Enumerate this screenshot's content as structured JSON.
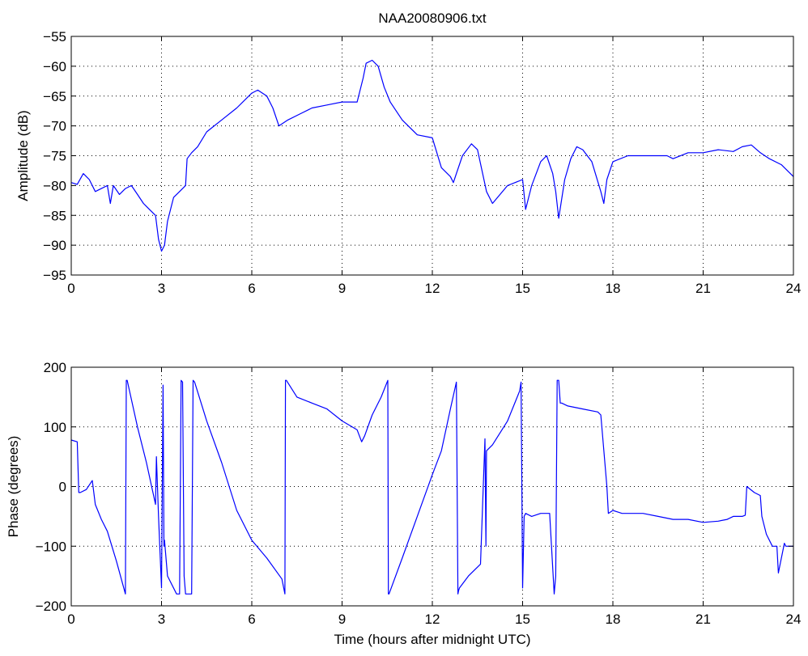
{
  "figure": {
    "title": "NAA20080906.txt",
    "line_color": "#0000ff"
  },
  "chart_data": [
    {
      "type": "line",
      "title": "NAA20080906.txt",
      "xlabel": "",
      "ylabel": "Amplitude (dB)",
      "xlim": [
        0,
        24
      ],
      "ylim": [
        -95,
        -55
      ],
      "xticks": [
        0,
        3,
        6,
        9,
        12,
        15,
        18,
        21,
        24
      ],
      "yticks": [
        -95,
        -90,
        -85,
        -80,
        -75,
        -70,
        -65,
        -60,
        -55
      ],
      "grid": true,
      "series": [
        {
          "x": [
            0,
            0.2,
            0.4,
            0.6,
            0.8,
            1.0,
            1.2,
            1.3,
            1.4,
            1.6,
            1.8,
            2.0,
            2.2,
            2.4,
            2.6,
            2.8,
            2.9,
            3.0,
            3.1,
            3.2,
            3.4,
            3.6,
            3.8,
            3.85,
            4.0,
            4.2,
            4.5,
            5.0,
            5.5,
            6.0,
            6.2,
            6.5,
            6.7,
            6.9,
            7.2,
            7.6,
            8.0,
            8.5,
            9.0,
            9.5,
            9.7,
            9.8,
            10.0,
            10.2,
            10.4,
            10.6,
            11.0,
            11.5,
            12.0,
            12.3,
            12.6,
            12.7,
            12.8,
            13.0,
            13.3,
            13.5,
            13.8,
            14.0,
            14.5,
            15.0,
            15.1,
            15.3,
            15.6,
            15.8,
            16.0,
            16.1,
            16.2,
            16.4,
            16.6,
            16.8,
            17.0,
            17.3,
            17.6,
            17.7,
            17.8,
            18.0,
            18.5,
            19.0,
            19.5,
            19.8,
            20.0,
            20.5,
            21.0,
            21.5,
            22.0,
            22.3,
            22.6,
            22.9,
            23.2,
            23.6,
            24.0
          ],
          "y": [
            -79.5,
            -79.8,
            -78,
            -79,
            -81,
            -80.5,
            -80,
            -83,
            -80,
            -81.5,
            -80.5,
            -80,
            -81.5,
            -83,
            -84,
            -85,
            -89,
            -91,
            -90,
            -86,
            -82,
            -81,
            -80,
            -75.5,
            -74.5,
            -73.5,
            -71,
            -69,
            -67,
            -64.5,
            -64,
            -65,
            -67,
            -70,
            -69,
            -68,
            -67,
            -66.5,
            -66,
            -66,
            -62,
            -59.5,
            -59,
            -60,
            -63.5,
            -66,
            -69,
            -71.5,
            -72,
            -77,
            -78.5,
            -79.5,
            -78,
            -75,
            -73,
            -74,
            -81,
            -83,
            -80,
            -79,
            -84,
            -80,
            -76,
            -75,
            -78,
            -81,
            -85.5,
            -79,
            -75.5,
            -73.5,
            -74,
            -76,
            -81,
            -83,
            -79,
            -76,
            -75,
            -75,
            -75,
            -75,
            -75.5,
            -74.5,
            -74.5,
            -74,
            -74.3,
            -73.5,
            -73.2,
            -74.5,
            -75.5,
            -76.5,
            -78.5
          ]
        }
      ]
    },
    {
      "type": "line",
      "title": "",
      "xlabel": "Time (hours after midnight UTC)",
      "ylabel": "Phase (degrees)",
      "xlim": [
        0,
        24
      ],
      "ylim": [
        -200,
        200
      ],
      "xticks": [
        0,
        3,
        6,
        9,
        12,
        15,
        18,
        21,
        24
      ],
      "yticks": [
        -200,
        -100,
        0,
        100,
        200
      ],
      "grid": true,
      "series": [
        {
          "x": [
            0,
            0.2,
            0.25,
            0.3,
            0.5,
            0.7,
            0.8,
            1.0,
            1.2,
            1.5,
            1.8,
            1.83,
            1.86,
            2.2,
            2.5,
            2.8,
            2.83,
            2.9,
            3.0,
            3.05,
            3.08,
            3.1,
            3.2,
            3.5,
            3.6,
            3.65,
            3.7,
            3.75,
            3.8,
            4.0,
            4.05,
            4.1,
            4.5,
            5.0,
            5.5,
            6.0,
            6.5,
            7.0,
            7.1,
            7.12,
            7.15,
            7.5,
            8.0,
            8.5,
            9.0,
            9.5,
            9.65,
            9.75,
            10.0,
            10.3,
            10.52,
            10.54,
            10.56,
            11.0,
            11.5,
            12.0,
            12.3,
            12.6,
            12.8,
            12.85,
            12.87,
            12.9,
            13.2,
            13.6,
            13.75,
            13.78,
            13.8,
            14.0,
            14.5,
            14.9,
            14.95,
            15.0,
            15.05,
            15.1,
            15.3,
            15.6,
            15.9,
            16.05,
            16.1,
            16.15,
            16.2,
            16.25,
            16.3,
            16.5,
            17.0,
            17.5,
            17.6,
            17.8,
            17.85,
            18.0,
            18.3,
            19.0,
            19.5,
            20.0,
            20.5,
            21.0,
            21.5,
            21.8,
            22.0,
            22.3,
            22.4,
            22.45,
            22.7,
            22.9,
            22.95,
            23.1,
            23.3,
            23.45,
            23.5,
            23.7,
            23.75,
            24.0
          ],
          "y": [
            78,
            75,
            -10,
            -10,
            -5,
            10,
            -30,
            -55,
            -75,
            -125,
            -180,
            178,
            178,
            100,
            40,
            -30,
            50,
            -50,
            -170,
            170,
            -100,
            -90,
            -150,
            -180,
            -180,
            178,
            175,
            -150,
            -180,
            -180,
            178,
            175,
            110,
            40,
            -40,
            -90,
            -120,
            -155,
            -180,
            178,
            178,
            150,
            140,
            130,
            110,
            95,
            75,
            85,
            120,
            150,
            178,
            -180,
            -180,
            -120,
            -50,
            20,
            60,
            130,
            175,
            -180,
            -175,
            -170,
            -150,
            -130,
            80,
            -100,
            60,
            70,
            110,
            160,
            175,
            -170,
            -50,
            -45,
            -50,
            -45,
            -45,
            -180,
            -150,
            178,
            178,
            140,
            140,
            135,
            130,
            125,
            120,
            0,
            -45,
            -40,
            -45,
            -45,
            -50,
            -55,
            -55,
            -60,
            -58,
            -55,
            -50,
            -50,
            -48,
            0,
            -10,
            -15,
            -50,
            -80,
            -100,
            -100,
            -145,
            -95,
            -100,
            -100
          ]
        }
      ]
    }
  ]
}
